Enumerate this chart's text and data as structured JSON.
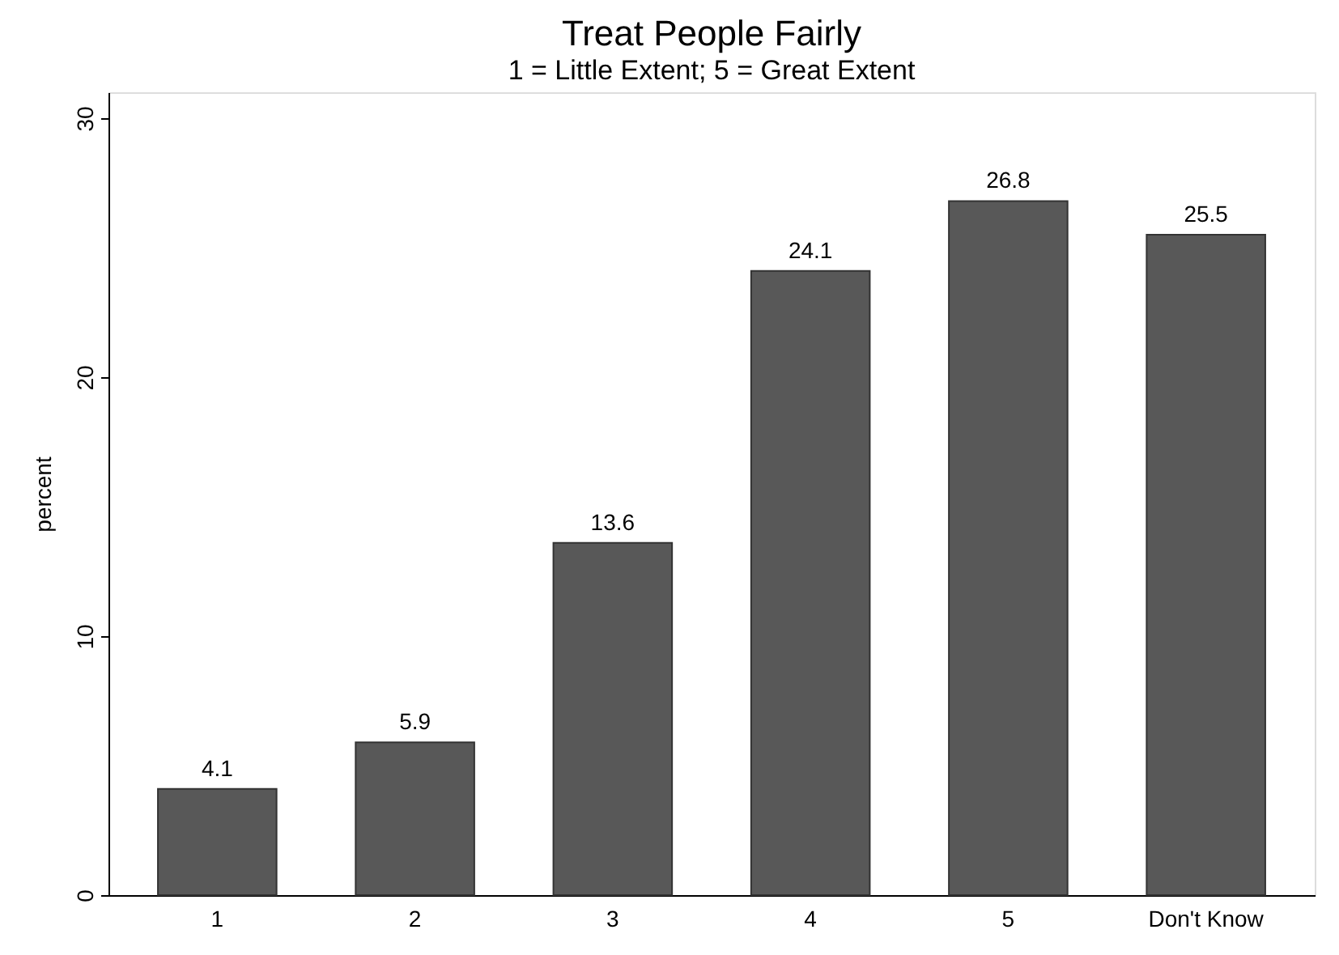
{
  "chart_data": {
    "type": "bar",
    "title": "Treat People Fairly",
    "subtitle": "1 = Little Extent; 5 = Great Extent",
    "ylabel": "percent",
    "categories": [
      "1",
      "2",
      "3",
      "4",
      "5",
      "Don't Know"
    ],
    "values": [
      4.1,
      5.9,
      13.6,
      24.1,
      26.8,
      25.5
    ],
    "color": "#585858",
    "ylim": [
      0,
      31
    ],
    "yticks": [
      0,
      10,
      20,
      30
    ],
    "data_labels": true,
    "grid": false
  }
}
